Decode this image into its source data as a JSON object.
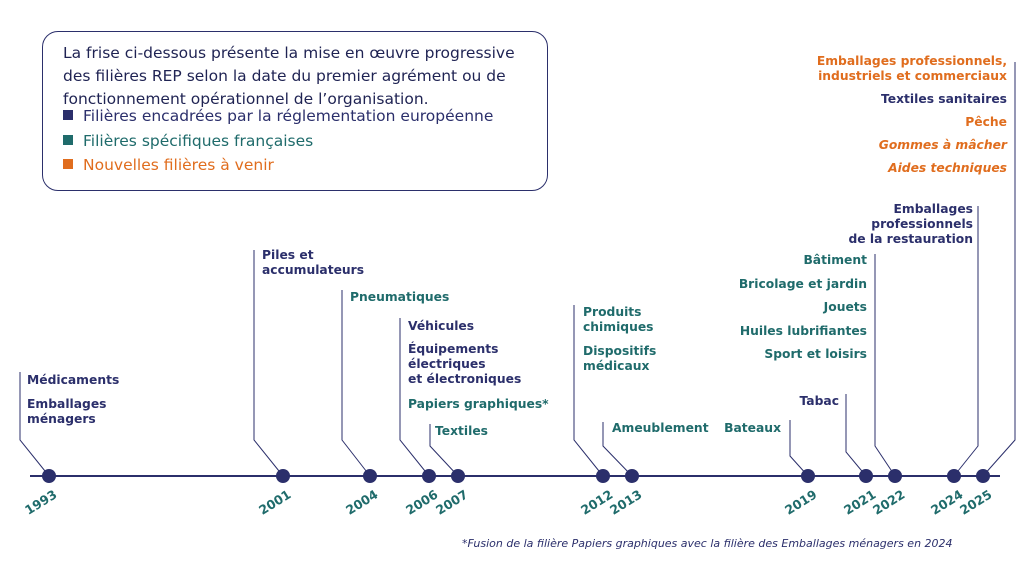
{
  "legend": {
    "intro": "La frise ci-dessous présente la mise en œuvre progressive des filières REP selon la date du premier agrément ou de fonctionnement opérationnel de l’organisation.",
    "items": [
      {
        "label": "Filières encadrées par la réglementation européenne",
        "color": "#2b2f6b"
      },
      {
        "label": "Filières spécifiques françaises",
        "color": "#1f6b6b"
      },
      {
        "label": "Nouvelles filières à venir",
        "color": "#e06d1e"
      }
    ]
  },
  "timeline": {
    "years": [
      "1993",
      "2001",
      "2004",
      "2006",
      "2007",
      "2012",
      "2013",
      "2019",
      "2021",
      "2022",
      "2024",
      "2025"
    ],
    "labels": {
      "medicaments": "Médicaments",
      "emballages_menagers": "Emballages\nménagers",
      "piles": "Piles et\naccumulateurs",
      "pneumatiques": "Pneumatiques",
      "vehicules": "Véhicules",
      "equipements": "Équipements\nélectriques\net électroniques",
      "papiers": "Papiers graphiques*",
      "textiles": "Textiles",
      "produits_chimiques": "Produits\nchimiques",
      "dispositifs": "Dispositifs\nmédicaux",
      "ameublement": "Ameublement",
      "bateaux": "Bateaux",
      "tabac": "Tabac",
      "batiment": "Bâtiment",
      "bricolage": "Bricolage et jardin",
      "jouets": "Jouets",
      "huiles": "Huiles lubrifiantes",
      "sport": "Sport et loisirs",
      "emballages_restauration": "Emballages\nprofessionnels\nde la restauration",
      "emballages_pro": "Emballages professionnels,\nindustriels et commerciaux",
      "textiles_sanitaires": "Textiles sanitaires",
      "peche": "Pêche",
      "gommes": "Gommes à mâcher",
      "aides": "Aides techniques"
    }
  },
  "footnote": "*Fusion de la filière Papiers graphiques avec la filière des Emballages ménagers en 2024",
  "colors": {
    "eu": "#2b2f6b",
    "fr": "#1f6b6b",
    "new": "#e06d1e",
    "axis": "#2b2f6b"
  }
}
